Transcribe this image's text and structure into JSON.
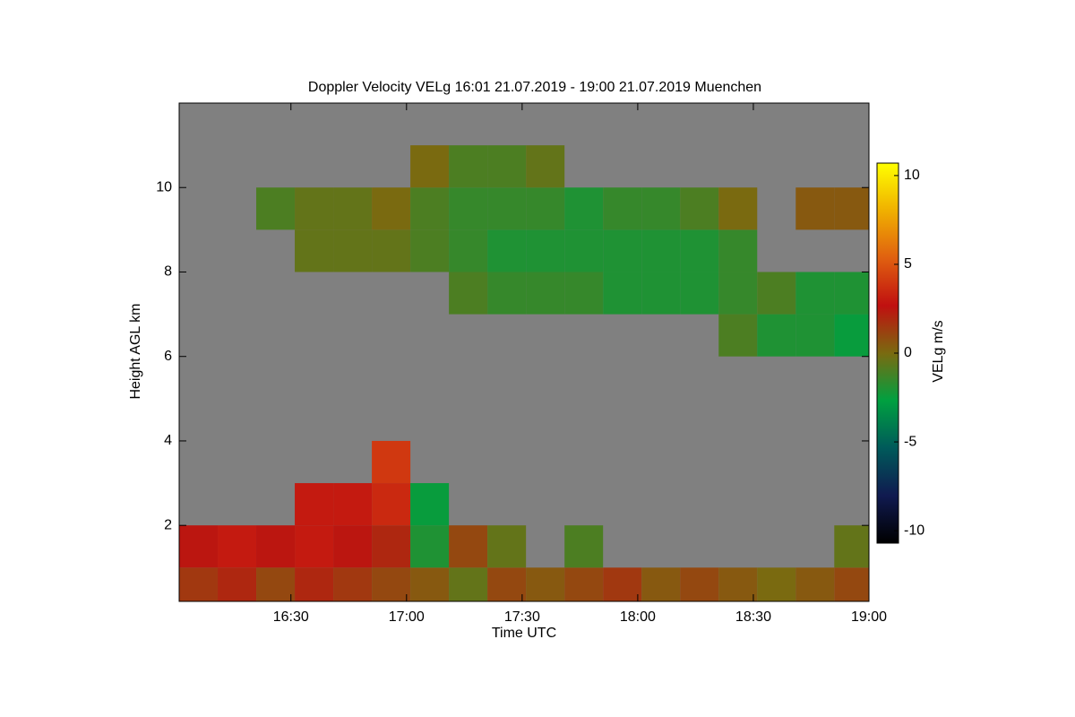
{
  "chart_data": {
    "type": "heatmap",
    "title": "Doppler Velocity VELg   16:01 21.07.2019 - 19:00 21.07.2019 Muenchen",
    "x_label": "Time UTC",
    "y_label": "Height AGL km",
    "colorbar_label": "VELg m/s",
    "background": "#808080",
    "colormap": [
      "#000000",
      "#101a50",
      "#005a5a",
      "#00a040",
      "#7a6a10",
      "#c01010",
      "#e06010",
      "#f0b000",
      "#ffff00"
    ],
    "xlim": [
      961,
      1140
    ],
    "xticks": [
      {
        "value": 990,
        "label": "16:30"
      },
      {
        "value": 1020,
        "label": "17:00"
      },
      {
        "value": 1050,
        "label": "17:30"
      },
      {
        "value": 1080,
        "label": "18:00"
      },
      {
        "value": 1110,
        "label": "18:30"
      },
      {
        "value": 1140,
        "label": "19:00"
      }
    ],
    "ylim": [
      0.2,
      12
    ],
    "yticks": [
      2,
      4,
      6,
      8,
      10
    ],
    "clim": [
      -10.7,
      10.7
    ],
    "cticks": [
      -10,
      -5,
      0,
      5,
      10
    ],
    "x": [
      966,
      976,
      986,
      996,
      1006,
      1016,
      1026,
      1036,
      1046,
      1056,
      1066,
      1076,
      1086,
      1096,
      1106,
      1116,
      1126,
      1136
    ],
    "y": [
      0.5,
      1.5,
      2.5,
      3.5,
      4.5,
      5.5,
      6.5,
      7.5,
      8.5,
      9.5,
      10.5,
      11.5
    ],
    "values": [
      [
        1.5,
        2,
        1,
        2,
        1.5,
        1,
        0.5,
        -0.5,
        1,
        0.5,
        1,
        1.5,
        0.5,
        1,
        0.5,
        0,
        0.5,
        1
      ],
      [
        2.5,
        3,
        2.5,
        3,
        2.5,
        2,
        -2,
        1,
        -0.5,
        null,
        -1,
        null,
        null,
        null,
        null,
        null,
        null,
        -0.5
      ],
      [
        null,
        null,
        null,
        3,
        3,
        3.5,
        -2.5,
        null,
        null,
        null,
        null,
        null,
        null,
        null,
        null,
        null,
        null,
        null
      ],
      [
        null,
        null,
        null,
        null,
        null,
        4,
        null,
        null,
        null,
        null,
        null,
        null,
        null,
        null,
        null,
        null,
        null,
        null
      ],
      [
        null,
        null,
        null,
        null,
        null,
        null,
        null,
        null,
        null,
        null,
        null,
        null,
        null,
        null,
        null,
        null,
        null,
        null
      ],
      [
        null,
        null,
        null,
        null,
        null,
        null,
        null,
        null,
        null,
        null,
        null,
        null,
        null,
        null,
        null,
        null,
        null,
        null
      ],
      [
        null,
        null,
        null,
        null,
        null,
        null,
        null,
        null,
        null,
        null,
        null,
        null,
        null,
        null,
        -1,
        -2,
        -2,
        -2.5
      ],
      [
        null,
        null,
        null,
        null,
        null,
        null,
        null,
        -1,
        -1.5,
        -1.5,
        -1.5,
        -2,
        -2,
        -2,
        -1.5,
        -1,
        -2,
        -2
      ],
      [
        null,
        null,
        null,
        -0.5,
        -0.5,
        -0.5,
        -1,
        -1.5,
        -2,
        -2,
        -2,
        -2,
        -2,
        -2,
        -1.5,
        null,
        null,
        null
      ],
      [
        null,
        null,
        -1,
        -0.5,
        -0.5,
        0,
        -1,
        -1.5,
        -1.5,
        -1.5,
        -2,
        -1.5,
        -1.5,
        -1,
        0,
        null,
        0.5,
        0.5
      ],
      [
        null,
        null,
        null,
        null,
        null,
        null,
        0,
        -1,
        -1,
        -0.5,
        null,
        null,
        null,
        null,
        null,
        null,
        null,
        null
      ],
      [
        null,
        null,
        null,
        null,
        null,
        null,
        null,
        null,
        null,
        null,
        null,
        null,
        null,
        null,
        null,
        null,
        null,
        null
      ]
    ]
  }
}
